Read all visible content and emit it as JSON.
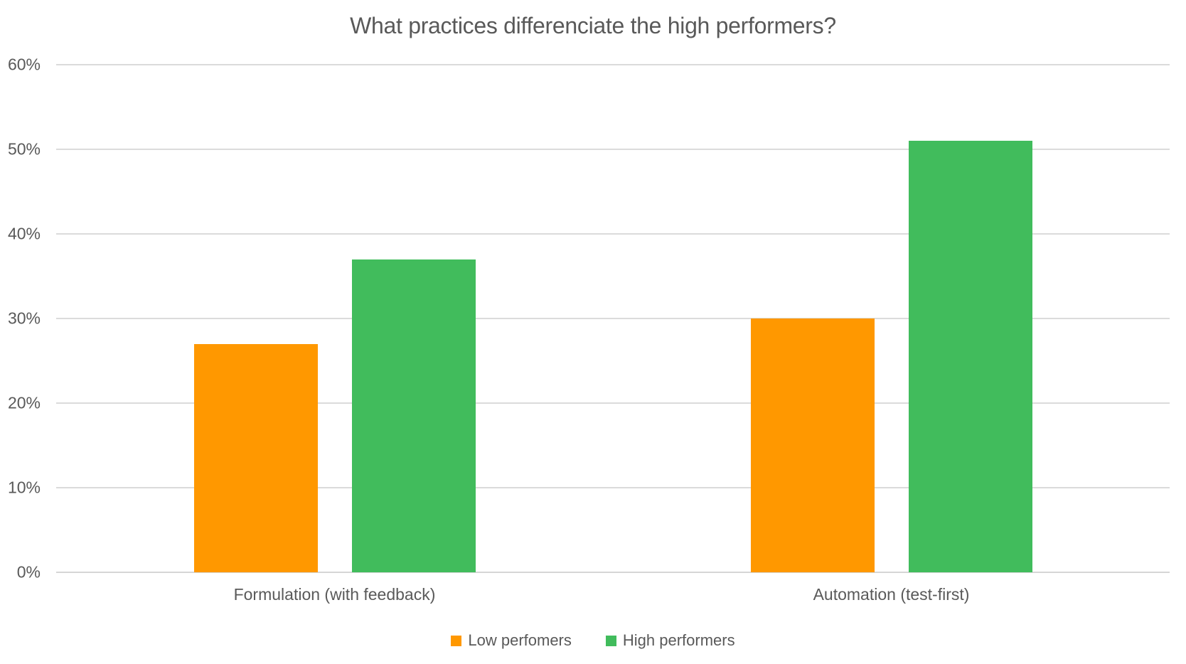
{
  "chart_data": {
    "type": "bar",
    "title": "What practices differenciate the high performers?",
    "categories": [
      "Formulation (with feedback)",
      "Automation (test-first)"
    ],
    "series": [
      {
        "name": "Low perfomers",
        "color": "#FF9800",
        "values": [
          27,
          30
        ]
      },
      {
        "name": "High performers",
        "color": "#41BC5C",
        "values": [
          37,
          51
        ]
      }
    ],
    "value_unit": "%",
    "ylim": [
      0,
      60
    ],
    "yticks": [
      {
        "value": 0,
        "label": "0%"
      },
      {
        "value": 10,
        "label": "10%"
      },
      {
        "value": 20,
        "label": "20%"
      },
      {
        "value": 30,
        "label": "30%"
      },
      {
        "value": 40,
        "label": "40%"
      },
      {
        "value": 50,
        "label": "50%"
      },
      {
        "value": 60,
        "label": "60%"
      }
    ],
    "grid": true,
    "legend_position": "bottom"
  },
  "style": {
    "grid_color": "#DBDBDB",
    "axis_line_color": "#D6D6D6",
    "text_color": "#595959",
    "background": "#FFFFFF"
  }
}
